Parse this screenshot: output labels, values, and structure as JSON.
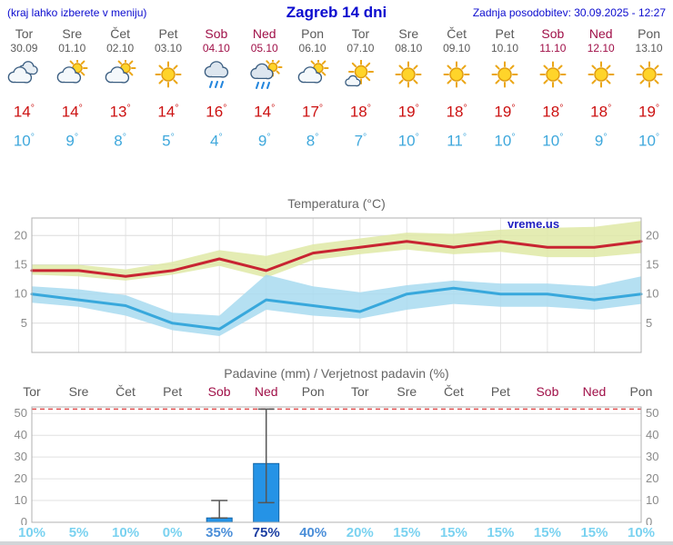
{
  "header": {
    "hint": "(kraj lahko izberete v meniju)",
    "title": "Zagreb 14 dni",
    "updated": "Zadnja posodobitev: 30.09.2025 - 12:27"
  },
  "units": {
    "degree": "°",
    "percent": "%"
  },
  "colors": {
    "header_text": "#0b0bcf",
    "weekday_text": "#5a5a5a",
    "weekend_text": "#a01048",
    "tmax_text": "#cc1111",
    "tmin_text": "#3fa8dc"
  },
  "days": [
    {
      "name": "Tor",
      "date": "30.09",
      "weekend": false,
      "icon": "cloudy",
      "tmax": 14,
      "tmin": 10
    },
    {
      "name": "Sre",
      "date": "01.10",
      "weekend": false,
      "icon": "partly",
      "tmax": 14,
      "tmin": 9
    },
    {
      "name": "Čet",
      "date": "02.10",
      "weekend": false,
      "icon": "partly",
      "tmax": 13,
      "tmin": 8
    },
    {
      "name": "Pet",
      "date": "03.10",
      "weekend": false,
      "icon": "sunny",
      "tmax": 14,
      "tmin": 5
    },
    {
      "name": "Sob",
      "date": "04.10",
      "weekend": true,
      "icon": "rain",
      "tmax": 16,
      "tmin": 4
    },
    {
      "name": "Ned",
      "date": "05.10",
      "weekend": true,
      "icon": "rain-sun",
      "tmax": 14,
      "tmin": 9
    },
    {
      "name": "Pon",
      "date": "06.10",
      "weekend": false,
      "icon": "partly",
      "tmax": 17,
      "tmin": 8
    },
    {
      "name": "Tor",
      "date": "07.10",
      "weekend": false,
      "icon": "mostly-sunny",
      "tmax": 18,
      "tmin": 7
    },
    {
      "name": "Sre",
      "date": "08.10",
      "weekend": false,
      "icon": "sunny",
      "tmax": 19,
      "tmin": 10
    },
    {
      "name": "Čet",
      "date": "09.10",
      "weekend": false,
      "icon": "sunny",
      "tmax": 18,
      "tmin": 11
    },
    {
      "name": "Pet",
      "date": "10.10",
      "weekend": false,
      "icon": "sunny",
      "tmax": 19,
      "tmin": 10
    },
    {
      "name": "Sob",
      "date": "11.10",
      "weekend": true,
      "icon": "sunny",
      "tmax": 18,
      "tmin": 10
    },
    {
      "name": "Ned",
      "date": "12.10",
      "weekend": true,
      "icon": "sunny",
      "tmax": 18,
      "tmin": 9
    },
    {
      "name": "Pon",
      "date": "13.10",
      "weekend": false,
      "icon": "sunny",
      "tmax": 19,
      "tmin": 10
    }
  ],
  "chart_data": [
    {
      "type": "area",
      "title": "Temperatura (°C)",
      "watermark": "vreme.us",
      "ylim": [
        0,
        23
      ],
      "yticks": [
        5,
        10,
        15,
        20
      ],
      "x_categories": [
        "Tor",
        "Sre",
        "Čet",
        "Pet",
        "Sob",
        "Ned",
        "Pon",
        "Tor",
        "Sre",
        "Čet",
        "Pet",
        "Sob",
        "Ned",
        "Pon"
      ],
      "series": [
        {
          "name": "tmax",
          "values": [
            14,
            14,
            13,
            14,
            16,
            14,
            17,
            18,
            19,
            18,
            19,
            18,
            18,
            19
          ],
          "color": "#c82432",
          "band_upper": [
            15,
            15,
            14.2,
            15.5,
            17.5,
            16.5,
            18.5,
            19.5,
            20.5,
            20.3,
            21,
            21.3,
            21.5,
            22.5
          ],
          "band_lower": [
            13.3,
            13,
            12.3,
            13.3,
            14.8,
            12.8,
            15.8,
            16.8,
            17.6,
            16.8,
            17.2,
            16.3,
            16.3,
            17
          ],
          "band_color": "#dfe9a6"
        },
        {
          "name": "tmin",
          "values": [
            10,
            9,
            8,
            5,
            4,
            9,
            8,
            7,
            10,
            11,
            10,
            10,
            9,
            10
          ],
          "color": "#38a8dc",
          "band_upper": [
            11.3,
            10.8,
            9.8,
            6.8,
            6.3,
            13.3,
            11.3,
            10.3,
            11.5,
            12.3,
            11.8,
            11.8,
            11.3,
            13
          ],
          "band_lower": [
            8.5,
            7.8,
            6.3,
            3.8,
            2.8,
            7.3,
            6.3,
            5.8,
            7.3,
            8.3,
            7.8,
            7.8,
            7.3,
            8.3
          ],
          "band_color": "#a8daf0"
        }
      ]
    },
    {
      "type": "bar",
      "title": "Padavine (mm) / Verjetnost padavin (%)",
      "categories": [
        "Tor",
        "Sre",
        "Čet",
        "Pet",
        "Sob",
        "Ned",
        "Pon",
        "Tor",
        "Sre",
        "Čet",
        "Pet",
        "Sob",
        "Ned",
        "Pon"
      ],
      "weekend_flags": [
        false,
        false,
        false,
        false,
        true,
        true,
        false,
        false,
        false,
        false,
        false,
        true,
        true,
        false
      ],
      "values_mm": [
        0,
        0,
        0,
        0,
        2,
        27,
        0,
        0,
        0,
        0,
        0,
        0,
        0,
        0
      ],
      "whiskers": [
        null,
        null,
        null,
        null,
        [
          2,
          10
        ],
        [
          9,
          52
        ],
        null,
        null,
        null,
        null,
        null,
        null,
        null,
        null
      ],
      "probabilities": [
        10,
        5,
        10,
        0,
        35,
        75,
        40,
        20,
        15,
        15,
        15,
        15,
        15,
        10
      ],
      "ylim": [
        0,
        53
      ],
      "yticks": [
        0,
        10,
        20,
        30,
        40,
        50
      ],
      "bar_color": "#2593e6",
      "bar_border": "#1265a8",
      "whisker_color": "#555555",
      "overflow_line": {
        "y": 52,
        "color": "#e05050"
      },
      "prob_colors": {
        "low": "#7ad2f0",
        "mid": "#4a8ed8",
        "high": "#1c3fa2"
      }
    }
  ]
}
